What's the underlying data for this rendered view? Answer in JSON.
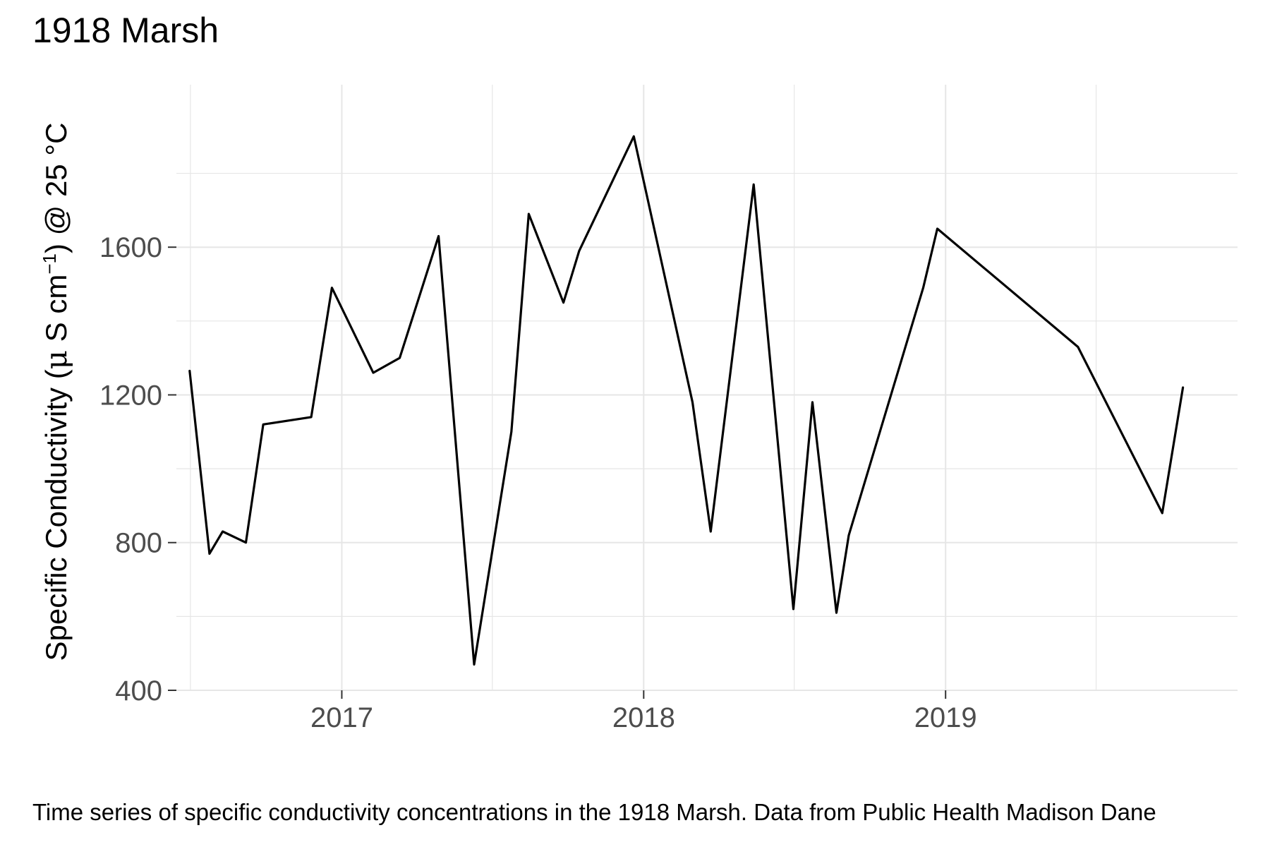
{
  "title": "1918 Marsh",
  "caption": "Time series of specific conductivity concentrations in the 1918 Marsh. Data from Public Health Madison Dane",
  "chart_data": {
    "type": "line",
    "title": "1918 Marsh",
    "ylabel": {
      "main": "Specific Conductivity (",
      "mu": "μ",
      "unit": " S cm",
      "exponent": "−1",
      "suffix": ") @ 25 °C"
    },
    "xlabel": "",
    "xlim": [
      "2016-06-15",
      "2019-12-20"
    ],
    "ylim": [
      400,
      2040
    ],
    "x_ticks": [
      {
        "date": "2017-01-01",
        "label": "2017"
      },
      {
        "date": "2018-01-01",
        "label": "2018"
      },
      {
        "date": "2019-01-01",
        "label": "2019"
      }
    ],
    "x_minor_ticks": [
      "2016-07-02",
      "2017-07-02",
      "2018-07-02",
      "2019-07-02"
    ],
    "y_ticks": [
      400,
      800,
      1200,
      1600
    ],
    "y_minor_ticks": [
      600,
      1000,
      1400,
      1800
    ],
    "grid": true,
    "line_color": "#000000",
    "grid_color": "#e6e6e6",
    "series": [
      {
        "x": [
          "2016-07-01",
          "2016-07-25",
          "2016-08-10",
          "2016-09-07",
          "2016-09-28",
          "2016-11-25",
          "2016-12-20",
          "2017-02-08",
          "2017-03-12",
          "2017-04-28",
          "2017-06-10",
          "2017-07-25",
          "2017-08-15",
          "2017-09-26",
          "2017-10-15",
          "2017-12-20",
          "2018-03-01",
          "2018-03-23",
          "2018-05-14",
          "2018-07-01",
          "2018-07-24",
          "2018-08-22",
          "2018-09-06",
          "2018-12-05",
          "2018-12-22",
          "2019-06-10",
          "2019-09-20",
          "2019-10-15"
        ],
        "y": [
          1265,
          770,
          830,
          800,
          1120,
          1140,
          1490,
          1260,
          1300,
          1630,
          470,
          1100,
          1690,
          1450,
          1590,
          1900,
          1180,
          830,
          1770,
          620,
          1180,
          610,
          820,
          1490,
          1650,
          1330,
          880,
          1220
        ]
      }
    ]
  }
}
